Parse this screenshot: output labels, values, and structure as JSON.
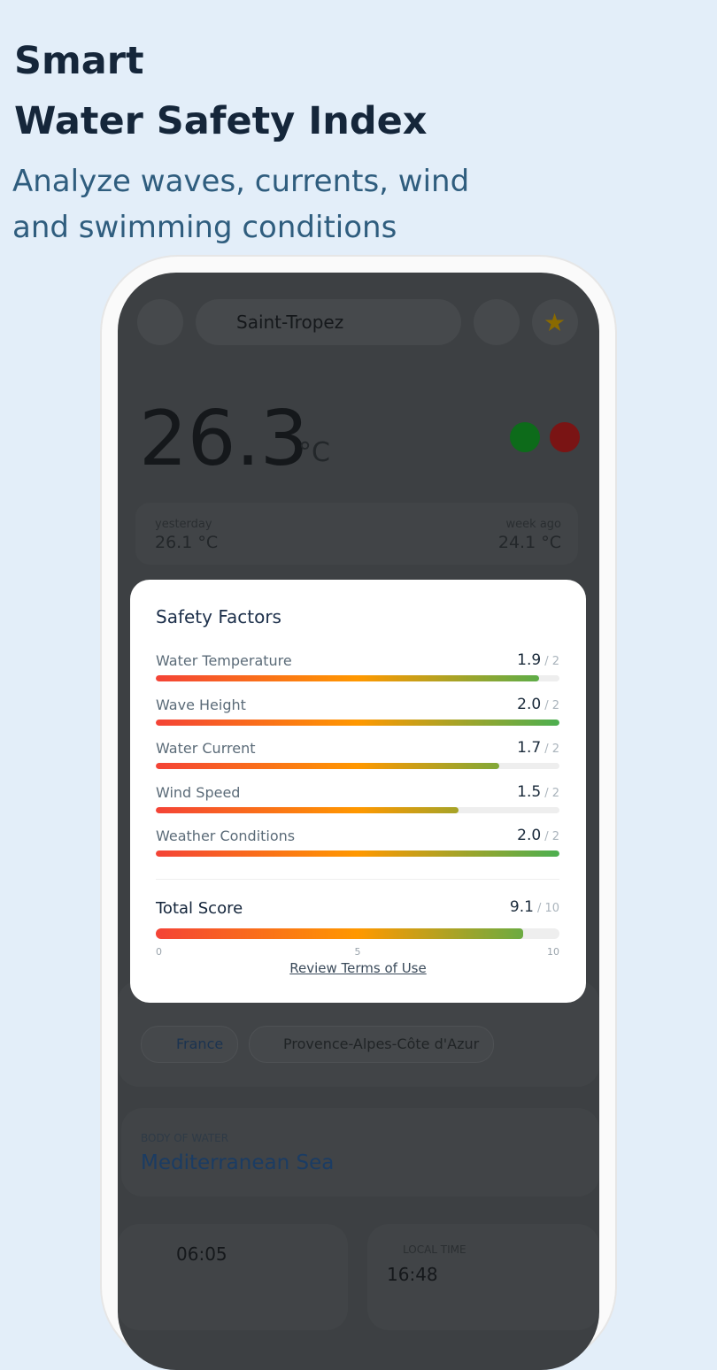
{
  "header": {
    "title_lines": [
      "Smart",
      "Water Safety Index"
    ],
    "subtitle_lines": [
      "Analyze waves, currents, wind",
      "and swimming conditions"
    ]
  },
  "app": {
    "search": "Saint-Tropez",
    "temperature": "26.3",
    "unit": "°C",
    "yesterday_label": "yesterday",
    "yesterday_value": "26.1 °C",
    "week_label": "week ago",
    "week_value": "24.1 °C",
    "chips": [
      "France",
      "Provence-Alpes-Côte d'Azur"
    ],
    "body_label": "BODY OF WATER",
    "body_value": "Mediterranean Sea",
    "sunrise": "06:05",
    "local_time_label": "LOCAL TIME",
    "local_time": "16:48"
  },
  "modal": {
    "title": "Safety Factors",
    "factors": [
      {
        "name": "Water Temperature",
        "value": 1.9,
        "max": 2,
        "max_label": "/ 2"
      },
      {
        "name": "Wave Height",
        "value": 2,
        "value_label": "2.0",
        "max": 2,
        "max_label": "/ 2"
      },
      {
        "name": "Water Current",
        "value": 1.7,
        "max": 2,
        "max_label": "/ 2"
      },
      {
        "name": "Wind Speed",
        "value": 1.5,
        "max": 2,
        "max_label": "/ 2"
      },
      {
        "name": "Weather Conditions",
        "value": 2,
        "value_label": "2.0",
        "max": 2,
        "max_label": "/ 2"
      }
    ],
    "total": {
      "name": "Total Score",
      "value": 9.1,
      "max": 10,
      "max_label": "/ 10",
      "ticks": [
        0,
        5,
        10
      ]
    },
    "link": "Review Terms of Use"
  }
}
